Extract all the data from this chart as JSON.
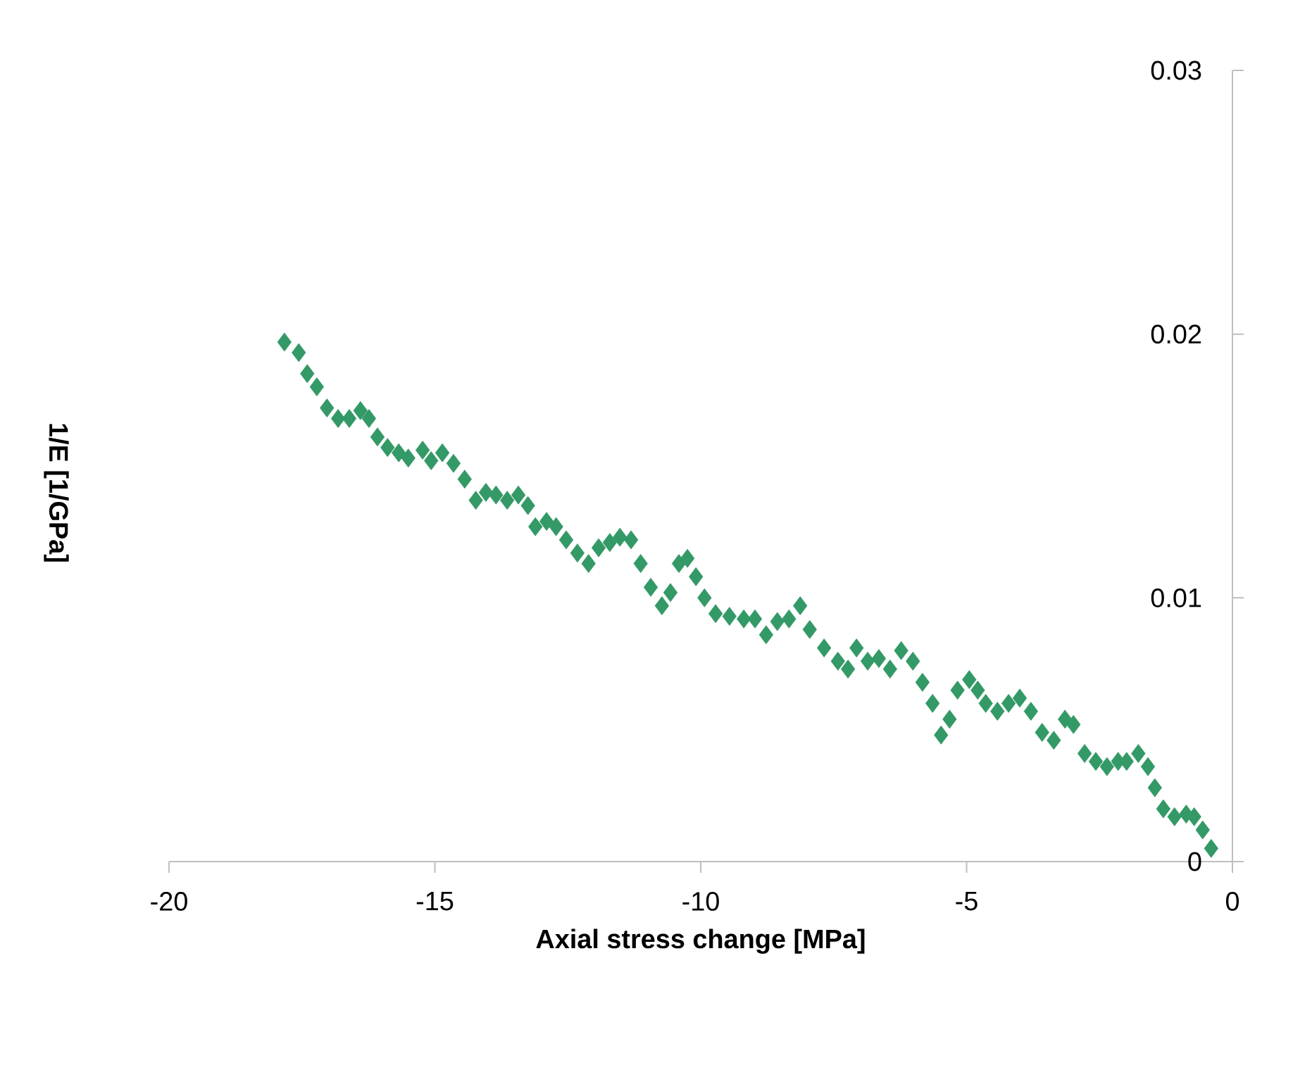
{
  "chart_data": {
    "type": "scatter",
    "xlabel": "Axial stress change [MPa]",
    "ylabel": "1/E [1/GPa]",
    "xlim": [
      -20,
      0
    ],
    "xticks": [
      -20,
      -15,
      -10,
      -5,
      0
    ],
    "ylim": [
      0,
      0.03
    ],
    "yticks": [
      0,
      0.01,
      0.02,
      0.03
    ],
    "grid": false,
    "marker": "diamond",
    "series": [
      {
        "color": "#339966",
        "x": [
          -17.83,
          -17.56,
          -17.4,
          -17.22,
          -17.03,
          -16.82,
          -16.61,
          -16.4,
          -16.24,
          -16.08,
          -15.89,
          -15.68,
          -15.5,
          -15.23,
          -15.07,
          -14.86,
          -14.65,
          -14.44,
          -14.23,
          -14.04,
          -13.85,
          -13.64,
          -13.43,
          -13.25,
          -13.11,
          -12.9,
          -12.72,
          -12.53,
          -12.32,
          -12.11,
          -11.92,
          -11.71,
          -11.52,
          -11.31,
          -11.13,
          -10.94,
          -10.73,
          -10.57,
          -10.41,
          -10.25,
          -10.09,
          -9.93,
          -9.72,
          -9.46,
          -9.19,
          -8.98,
          -8.77,
          -8.56,
          -8.34,
          -8.13,
          -7.95,
          -7.68,
          -7.42,
          -7.23,
          -7.07,
          -6.86,
          -6.65,
          -6.44,
          -6.23,
          -6.01,
          -5.83,
          -5.64,
          -5.48,
          -5.32,
          -5.17,
          -4.95,
          -4.79,
          -4.64,
          -4.42,
          -4.21,
          -4.0,
          -3.79,
          -3.58,
          -3.36,
          -3.15,
          -2.99,
          -2.78,
          -2.57,
          -2.36,
          -2.15,
          -1.99,
          -1.77,
          -1.59,
          -1.46,
          -1.3,
          -1.09,
          -0.87,
          -0.72,
          -0.56,
          -0.4
        ],
        "values": [
          0.0197,
          0.0193,
          0.0185,
          0.018,
          0.0172,
          0.0168,
          0.0168,
          0.0171,
          0.0168,
          0.0161,
          0.0157,
          0.0155,
          0.0153,
          0.0156,
          0.0152,
          0.0155,
          0.0151,
          0.0145,
          0.0137,
          0.014,
          0.0139,
          0.0137,
          0.0139,
          0.0135,
          0.0127,
          0.0129,
          0.0127,
          0.0122,
          0.0117,
          0.0113,
          0.0119,
          0.0121,
          0.0123,
          0.0122,
          0.0113,
          0.0104,
          0.0097,
          0.0102,
          0.0113,
          0.0115,
          0.0108,
          0.01,
          0.0094,
          0.0093,
          0.0092,
          0.0092,
          0.0086,
          0.0091,
          0.0092,
          0.0097,
          0.0088,
          0.0081,
          0.0076,
          0.0073,
          0.0081,
          0.0076,
          0.0077,
          0.0073,
          0.008,
          0.0076,
          0.0068,
          0.006,
          0.0048,
          0.0054,
          0.0065,
          0.0069,
          0.0065,
          0.006,
          0.0057,
          0.006,
          0.0062,
          0.0057,
          0.0049,
          0.0046,
          0.0054,
          0.0052,
          0.0041,
          0.0038,
          0.0036,
          0.0038,
          0.0038,
          0.0041,
          0.0036,
          0.0028,
          0.002,
          0.0017,
          0.0018,
          0.0017,
          0.0012,
          0.0005
        ]
      }
    ]
  }
}
